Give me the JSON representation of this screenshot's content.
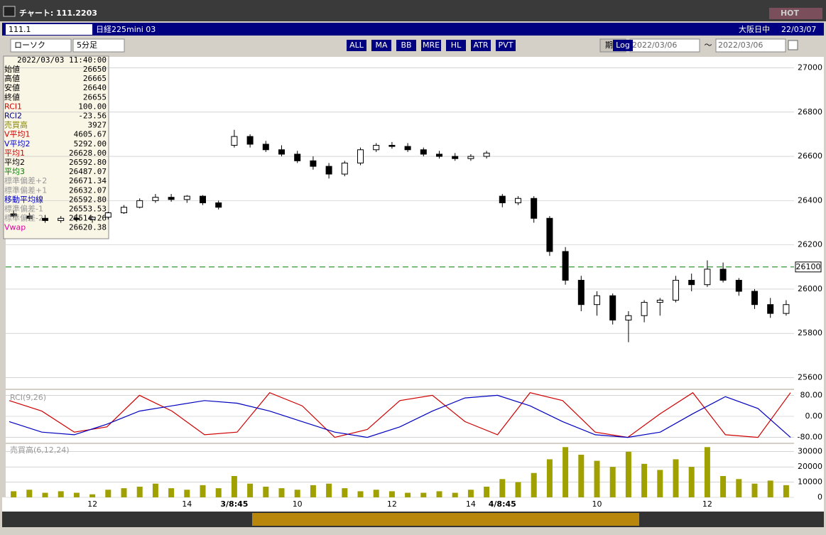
{
  "window": {
    "title": "チャート: 111.2203",
    "hot": "HOT"
  },
  "header": {
    "code": "111.1",
    "name": "日経225mini 03",
    "market": "大阪日中",
    "date": "22/03/07"
  },
  "toolbar": {
    "chart_style": "ローソク",
    "interval": "5分足",
    "period": "期間",
    "from": "2022/03/06",
    "tilde": "〜",
    "to": "2022/03/06",
    "buttons": [
      "ALL",
      "MA",
      "BB",
      "MRE",
      "HL",
      "ATR",
      "PVT",
      "Log"
    ]
  },
  "info": {
    "datetime": "2022/03/03  11:40:00",
    "rows": [
      {
        "label": "始値",
        "value": "26650",
        "color": "#000000"
      },
      {
        "label": "高値",
        "value": "26665",
        "color": "#000000"
      },
      {
        "label": "安値",
        "value": "26640",
        "color": "#000000"
      },
      {
        "label": "終値",
        "value": "26655",
        "color": "#000000"
      },
      {
        "label": "RCI1",
        "value": "100.00",
        "color": "#d00000"
      },
      {
        "label": "RCI2",
        "value": "-23.56",
        "color": "#000080"
      },
      {
        "label": "売買高",
        "value": "3927",
        "color": "#8a8a00"
      },
      {
        "label": "V平均1",
        "value": "4605.67",
        "color": "#d00000"
      },
      {
        "label": "V平均2",
        "value": "5292.00",
        "color": "#0000d0"
      },
      {
        "label": "平均1",
        "value": "26628.00",
        "color": "#d00000"
      },
      {
        "label": "平均2",
        "value": "26592.80",
        "color": "#000000"
      },
      {
        "label": "平均3",
        "value": "26487.07",
        "color": "#008000"
      },
      {
        "label": "標準偏差+2",
        "value": "26671.34",
        "color": "#999999"
      },
      {
        "label": "標準偏差+1",
        "value": "26632.07",
        "color": "#999999"
      },
      {
        "label": "移動平均線",
        "value": "26592.80",
        "color": "#0000c0"
      },
      {
        "label": "標準偏差-1",
        "value": "26553.53",
        "color": "#999999"
      },
      {
        "label": "標準偏差-2",
        "value": "26514.26",
        "color": "#999999"
      },
      {
        "label": "Vwap",
        "value": "26620.38",
        "color": "#e000a0"
      }
    ]
  },
  "chart_data": [
    {
      "type": "candlestick",
      "categories": [
        null,
        null,
        null,
        null,
        null,
        "12",
        null,
        null,
        null,
        null,
        null,
        "14",
        null,
        null,
        "3/8:45",
        null,
        null,
        null,
        "10",
        null,
        null,
        null,
        null,
        null,
        "12",
        null,
        null,
        null,
        null,
        "14",
        null,
        "4/8:45",
        null,
        null,
        null,
        null,
        null,
        "10",
        null,
        null,
        null,
        null,
        null,
        null,
        "12",
        null,
        null,
        null,
        null,
        null
      ],
      "open": [
        26340,
        26330,
        26320,
        26310,
        26320,
        26315,
        26325,
        26345,
        26370,
        26400,
        26415,
        26405,
        26420,
        26390,
        26650,
        26690,
        26655,
        26630,
        26610,
        26580,
        26555,
        26520,
        26570,
        26630,
        26650,
        26645,
        26630,
        26610,
        26600,
        26590,
        26600,
        26420,
        26390,
        26410,
        26320,
        26170,
        26040,
        25930,
        25970,
        25860,
        25880,
        25940,
        25950,
        26040,
        26020,
        26090,
        26040,
        25990,
        25930,
        25890
      ],
      "high": [
        26355,
        26345,
        26335,
        26330,
        26340,
        26330,
        26350,
        26380,
        26410,
        26430,
        26430,
        26425,
        26425,
        26400,
        26720,
        26700,
        26670,
        26650,
        26625,
        26600,
        26570,
        26580,
        26640,
        26660,
        26665,
        26660,
        26640,
        26625,
        26615,
        26610,
        26625,
        26430,
        26420,
        26420,
        26330,
        26190,
        26060,
        25990,
        25980,
        25900,
        25950,
        25960,
        26060,
        26070,
        26130,
        26120,
        26050,
        26000,
        25960,
        25950
      ],
      "low": [
        26320,
        26310,
        26300,
        26300,
        26305,
        26300,
        26315,
        26340,
        26365,
        26390,
        26395,
        26390,
        26380,
        26360,
        26640,
        26640,
        26620,
        26600,
        26570,
        26540,
        26500,
        26510,
        26560,
        26620,
        26635,
        26620,
        26600,
        26590,
        26580,
        26580,
        26590,
        26370,
        26380,
        26300,
        26150,
        26020,
        25900,
        25880,
        25840,
        25760,
        25850,
        25880,
        25940,
        25990,
        26010,
        26030,
        25970,
        25910,
        25870,
        25880
      ],
      "close": [
        26330,
        26320,
        26310,
        26320,
        26315,
        26325,
        26345,
        26370,
        26400,
        26415,
        26405,
        26420,
        26390,
        26370,
        26690,
        26655,
        26630,
        26610,
        26580,
        26555,
        26520,
        26570,
        26630,
        26650,
        26645,
        26630,
        26610,
        26600,
        26590,
        26600,
        26615,
        26390,
        26410,
        26320,
        26170,
        26040,
        25930,
        25970,
        25860,
        25880,
        25940,
        25950,
        26040,
        26020,
        26090,
        26040,
        25990,
        25930,
        25890,
        25930
      ],
      "ylim": [
        25550,
        27050
      ],
      "yticks": [
        27000,
        26800,
        26600,
        26400,
        26200,
        26000,
        25800,
        25600
      ],
      "reference_line": 26100,
      "reference_color": "#008000",
      "up_color": "#ffffff",
      "down_color": "#000000",
      "grid": true
    },
    {
      "type": "line",
      "title": "RCI(9,26)",
      "series": [
        {
          "name": "RCI1",
          "color": "#d00000",
          "values": [
            60,
            20,
            -60,
            -40,
            80,
            20,
            -70,
            -60,
            90,
            40,
            -80,
            -50,
            60,
            80,
            -20,
            -70,
            90,
            60,
            -60,
            -80,
            10,
            90,
            -70,
            -80,
            90
          ]
        },
        {
          "name": "RCI2",
          "color": "#0000c0",
          "values": [
            -20,
            -60,
            -70,
            -30,
            20,
            40,
            60,
            50,
            20,
            -20,
            -60,
            -80,
            -40,
            20,
            70,
            80,
            40,
            -20,
            -70,
            -80,
            -60,
            10,
            75,
            30,
            -80
          ]
        }
      ],
      "ylim": [
        -100,
        100
      ],
      "yticks": [
        {
          "value": 80,
          "label": "80.00"
        },
        {
          "value": 0,
          "label": "0.00"
        },
        {
          "value": -80,
          "label": "-80.00"
        }
      ]
    },
    {
      "type": "bar",
      "title": "売買高(6,12,24)",
      "color": "#a0a000",
      "values": [
        4000,
        5000,
        3000,
        4000,
        3000,
        2000,
        5000,
        6000,
        7000,
        9000,
        6000,
        5000,
        8000,
        6000,
        14000,
        9000,
        7000,
        6000,
        5000,
        8000,
        9000,
        6000,
        4000,
        5000,
        4000,
        3000,
        3000,
        4000,
        3000,
        5000,
        7000,
        12000,
        10000,
        16000,
        25000,
        33000,
        28000,
        24000,
        20000,
        30000,
        22000,
        18000,
        25000,
        20000,
        33000,
        14000,
        12000,
        9000,
        11000,
        8000
      ],
      "ylim": [
        0,
        35000
      ],
      "yticks": [
        30000,
        20000,
        10000,
        0
      ]
    }
  ]
}
